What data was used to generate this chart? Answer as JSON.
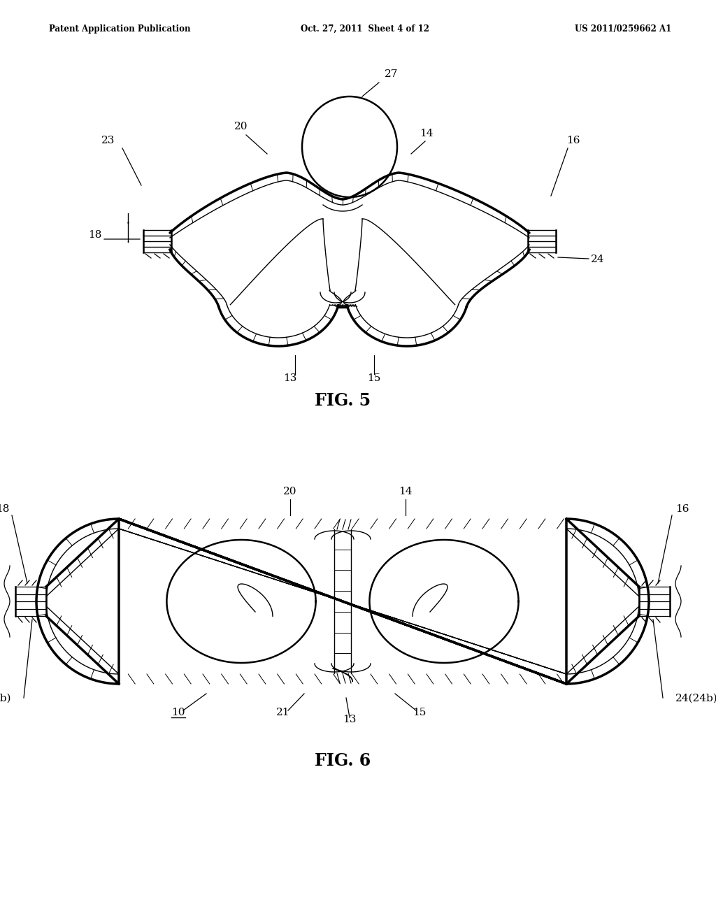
{
  "bg_color": "#ffffff",
  "line_color": "#000000",
  "header_left": "Patent Application Publication",
  "header_center": "Oct. 27, 2011  Sheet 4 of 12",
  "header_right": "US 2011/0259662 A1",
  "fig5_title": "FIG. 5",
  "fig6_title": "FIG. 6"
}
